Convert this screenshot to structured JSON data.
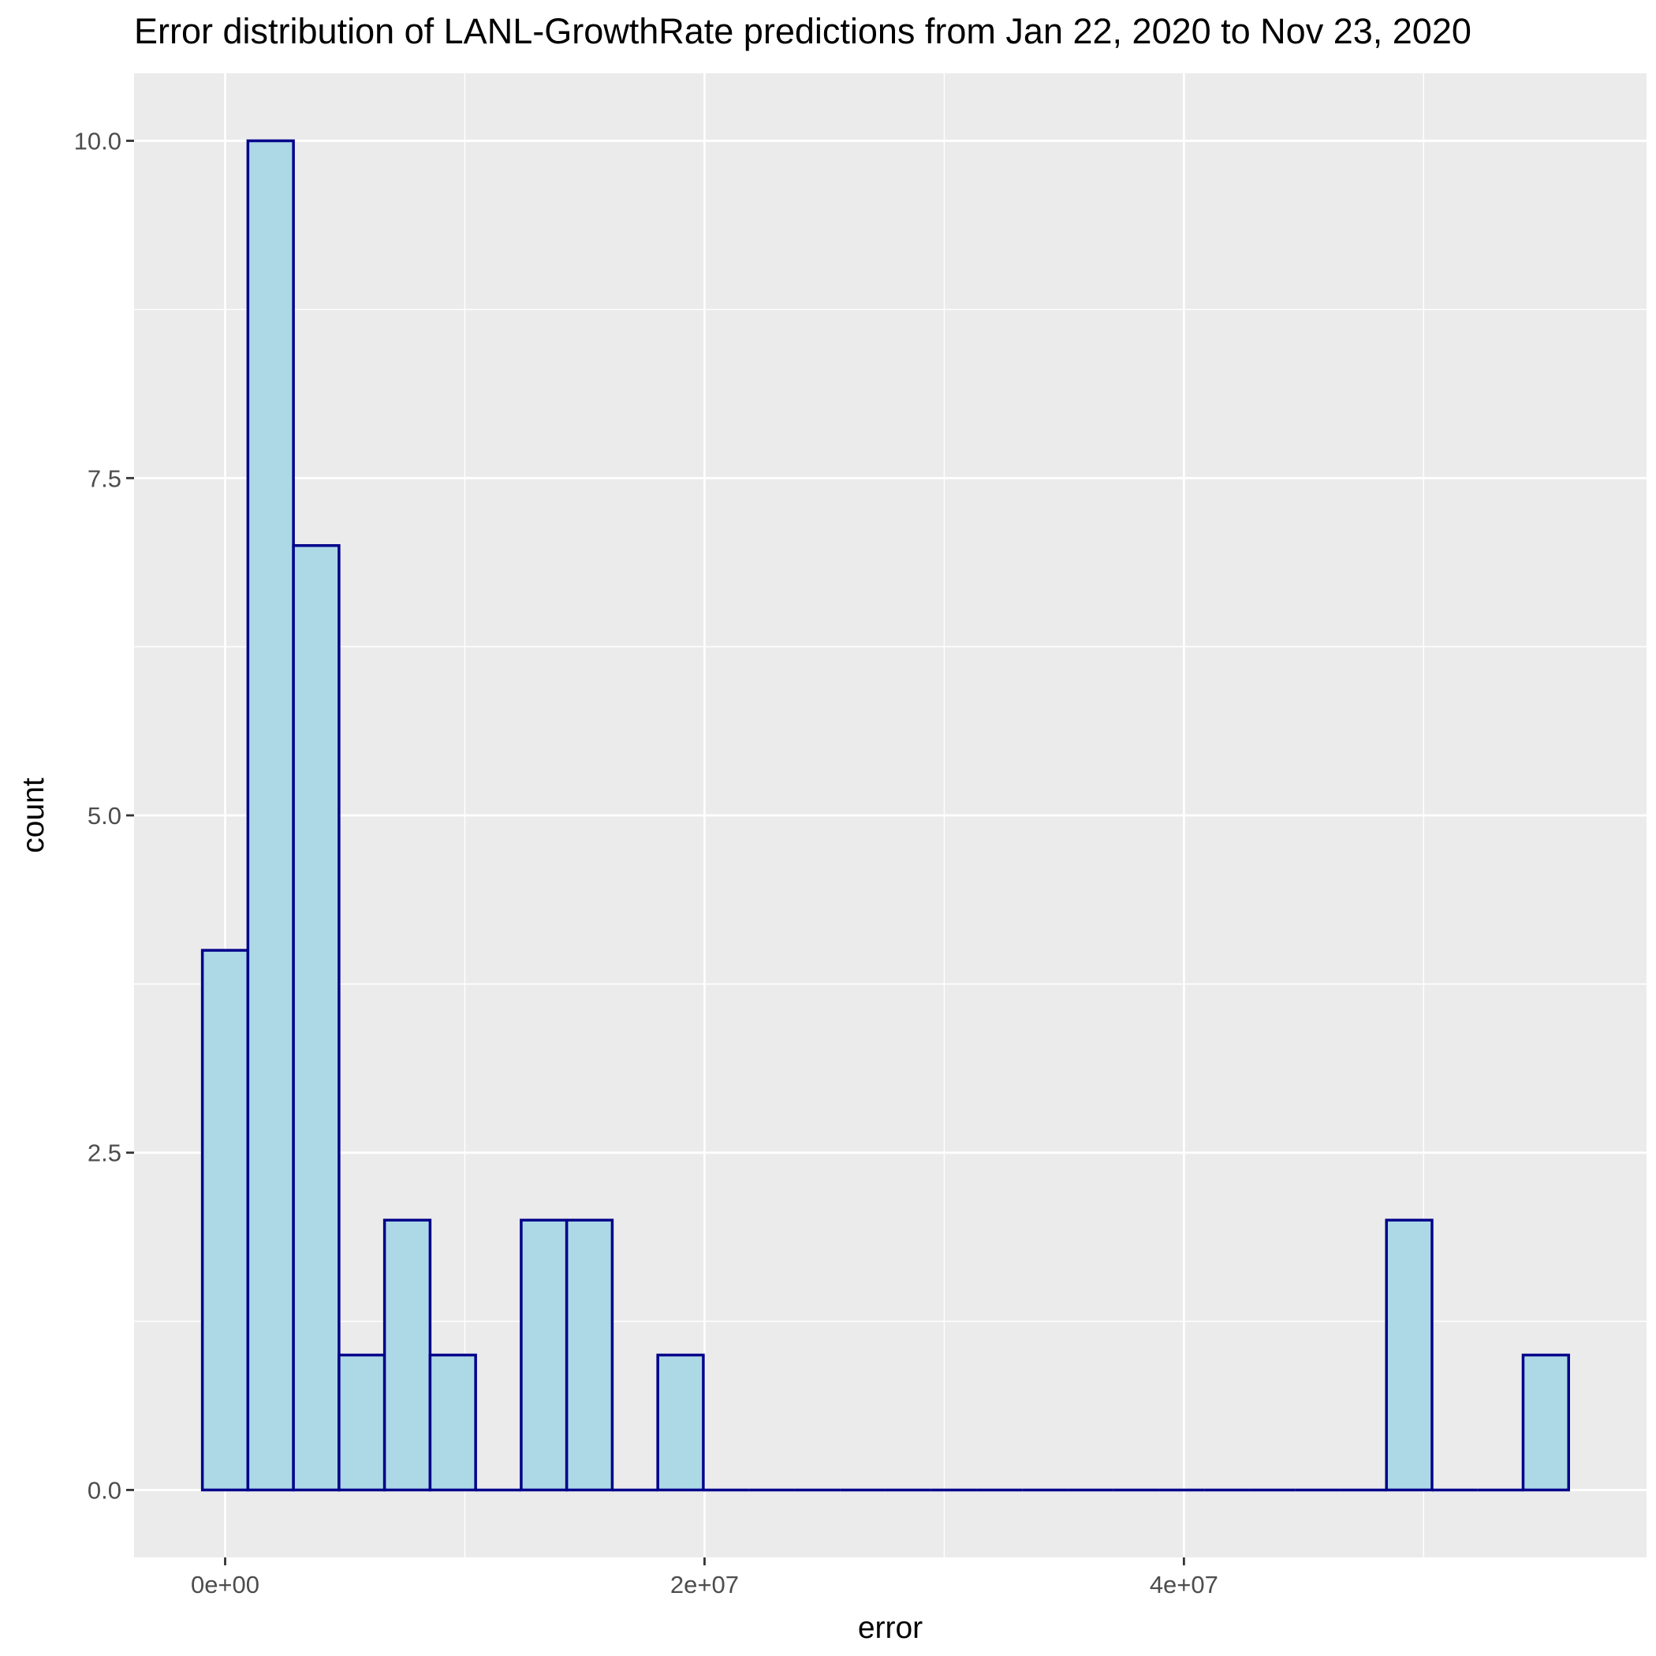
{
  "chart_data": {
    "type": "bar",
    "title": "Error distribution of LANL-GrowthRate predictions from Jan 22, 2020 to Nov 23, 2020",
    "xlabel": "error",
    "ylabel": "count",
    "xlim": [
      -3800000,
      59300000
    ],
    "ylim": [
      -0.5,
      10.5
    ],
    "x_ticks": [
      {
        "value": 0,
        "label": "0e+00"
      },
      {
        "value": 20000000,
        "label": "2e+07"
      },
      {
        "value": 40000000,
        "label": "4e+07"
      }
    ],
    "y_ticks": [
      {
        "value": 0,
        "label": "0.0"
      },
      {
        "value": 2.5,
        "label": "2.5"
      },
      {
        "value": 5,
        "label": "5.0"
      },
      {
        "value": 7.5,
        "label": "7.5"
      },
      {
        "value": 10,
        "label": "10.0"
      }
    ],
    "x_minor_gridlines": [
      10000000,
      30000000,
      50000000
    ],
    "y_minor_gridlines": [
      1.25,
      3.75,
      6.25,
      8.75
    ],
    "grid": true,
    "bin_width": 1900000,
    "bin_start": -950000,
    "counts": [
      4,
      10,
      7,
      1,
      2,
      1,
      0,
      2,
      2,
      0,
      1,
      0,
      0,
      0,
      0,
      0,
      0,
      0,
      0,
      0,
      0,
      0,
      0,
      0,
      0,
      0,
      2,
      0,
      0,
      1
    ],
    "colors": {
      "fill": "#add8e6",
      "outline": "#00008b",
      "panel": "#ebebeb",
      "grid": "#ffffff",
      "ticks": "#333333"
    }
  }
}
